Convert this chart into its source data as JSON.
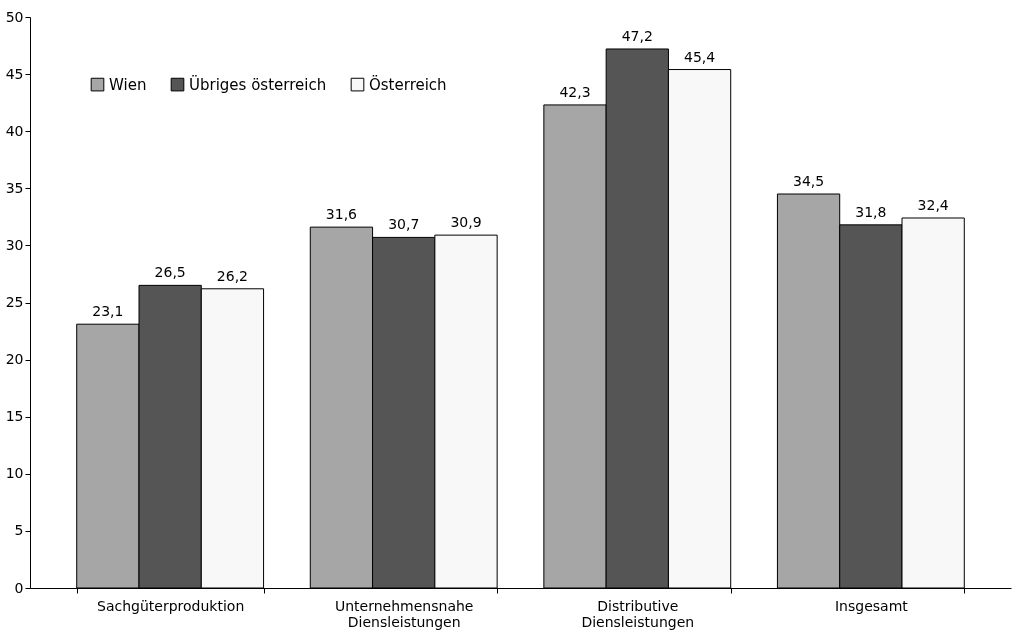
{
  "chart_data": {
    "type": "bar",
    "categories": [
      "Sachgüterproduktion",
      "Unternehmensnahe Diensleistungen",
      "Distributive Diensleistungen",
      "Insgesamt"
    ],
    "series": [
      {
        "name": "Wien",
        "color": "#a6a6a6",
        "values": [
          23.1,
          31.6,
          42.3,
          34.5
        ],
        "value_labels": [
          "23,1",
          "31,6",
          "42,3",
          "34,5"
        ]
      },
      {
        "name": "Übriges österreich",
        "color": "#555555",
        "values": [
          26.5,
          30.7,
          47.2,
          31.8
        ],
        "value_labels": [
          "26,5",
          "30,7",
          "47,2",
          "31,8"
        ]
      },
      {
        "name": "Österreich",
        "color": "#f8f8f8",
        "values": [
          26.2,
          30.9,
          45.4,
          32.4
        ],
        "value_labels": [
          "26,2",
          "30,9",
          "45,4",
          "32,4"
        ]
      }
    ],
    "ylim": [
      0,
      50
    ],
    "yticks": [
      0,
      5,
      10,
      15,
      20,
      25,
      30,
      35,
      40,
      45,
      50
    ],
    "grid": false,
    "legend": "top left"
  }
}
